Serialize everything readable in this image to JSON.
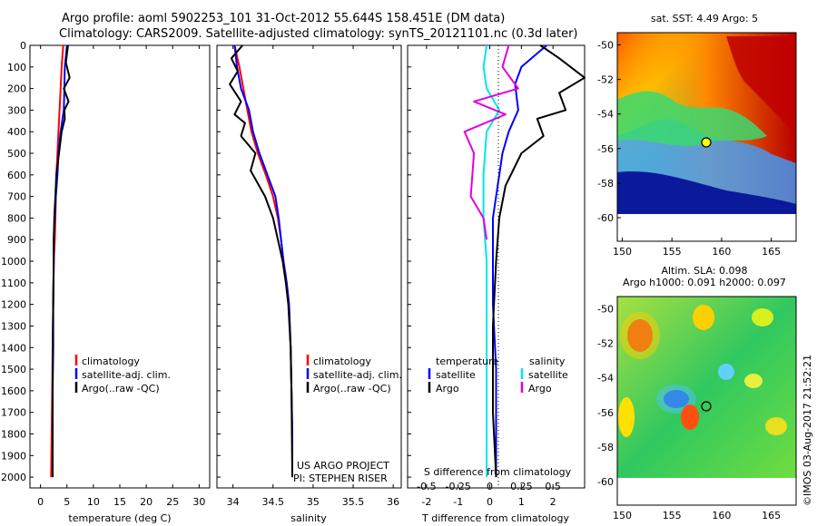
{
  "header": {
    "line1": "Argo profile: aoml 5902253_101 31-Oct-2012 55.644S 158.451E (DM data)",
    "line2": "Climatology: CARS2009. Satellite-adjusted climatology: synTS_20121101.nc (0.3d later)"
  },
  "colors": {
    "climatology": "#ff0000",
    "satellite": "#0000ff",
    "argo": "#000000",
    "sat_salinity": "#00e5ee",
    "argo_salinity": "#e000e0"
  },
  "chart_data": [
    {
      "type": "line",
      "id": "temperature",
      "xlabel": "temperature (deg C)",
      "ylabel": "",
      "xlim": [
        -2,
        32
      ],
      "ylim": [
        2050,
        0
      ],
      "xticks": [
        0,
        5,
        10,
        15,
        20,
        25,
        30
      ],
      "yticks": [
        0,
        100,
        200,
        300,
        400,
        500,
        600,
        700,
        800,
        900,
        1000,
        1100,
        1200,
        1300,
        1400,
        1500,
        1600,
        1700,
        1800,
        1900,
        2000
      ],
      "legend": [
        "climatology",
        "satellite-adj. clim.",
        "Argo(..raw -QC)"
      ],
      "legend_position": "bottom-center",
      "series": [
        {
          "name": "climatology",
          "color": "#ff0000",
          "x": [
            4.3,
            4.0,
            3.8,
            3.6,
            3.4,
            3.2,
            3.0,
            2.9,
            2.8,
            2.7,
            2.5,
            2.4,
            2.3,
            2.2,
            2.1,
            2.0
          ],
          "y": [
            0,
            100,
            200,
            300,
            400,
            500,
            600,
            700,
            800,
            900,
            1000,
            1200,
            1400,
            1600,
            1800,
            2000
          ]
        },
        {
          "name": "satellite-adj. clim.",
          "color": "#0000ff",
          "x": [
            5.0,
            4.6,
            4.5,
            4.4,
            3.8,
            3.4,
            3.2,
            2.9,
            2.7,
            2.5,
            2.5,
            2.4,
            2.3,
            2.3,
            2.3,
            2.3
          ],
          "y": [
            0,
            100,
            200,
            300,
            400,
            500,
            600,
            700,
            800,
            900,
            1000,
            1200,
            1400,
            1600,
            1800,
            2000
          ]
        },
        {
          "name": "Argo(..raw -QC)",
          "color": "#000000",
          "x": [
            5.2,
            4.8,
            5.5,
            4.4,
            5.3,
            4.5,
            4.6,
            4.0,
            3.5,
            3.0,
            2.8,
            2.6,
            2.5,
            2.5,
            2.4,
            2.4,
            2.3,
            2.3,
            2.3
          ],
          "y": [
            0,
            80,
            150,
            200,
            260,
            300,
            340,
            400,
            500,
            600,
            700,
            800,
            900,
            1000,
            1200,
            1400,
            1600,
            1800,
            2000
          ]
        }
      ]
    },
    {
      "type": "line",
      "id": "salinity",
      "xlabel": "salinity",
      "ylabel": "",
      "xlim": [
        33.8,
        36.1
      ],
      "ylim": [
        2050,
        0
      ],
      "xticks": [
        34,
        34.5,
        35,
        35.5,
        36
      ],
      "xtick_labels": [
        "34",
        "34.5",
        "35",
        "35.5",
        "36"
      ],
      "legend": [
        "climatology",
        "satellite-adj. clim.",
        "Argo(..raw -QC)"
      ],
      "legend_position": "bottom-right",
      "annotation": [
        "US ARGO PROJECT",
        "PI: STEPHEN RISER"
      ],
      "series": [
        {
          "name": "climatology",
          "color": "#ff0000",
          "x": [
            34.02,
            34.08,
            34.13,
            34.18,
            34.23,
            34.31,
            34.41,
            34.5,
            34.56,
            34.6,
            34.63,
            34.67,
            34.7,
            34.72,
            34.73,
            34.74,
            34.74
          ],
          "y": [
            0,
            100,
            200,
            300,
            400,
            500,
            600,
            700,
            800,
            900,
            1000,
            1100,
            1200,
            1400,
            1600,
            1800,
            2000
          ]
        },
        {
          "name": "satellite-adj. clim.",
          "color": "#0000ff",
          "x": [
            34.02,
            34.05,
            34.1,
            34.2,
            34.25,
            34.33,
            34.43,
            34.53,
            34.57,
            34.6,
            34.63,
            34.67,
            34.7,
            34.72,
            34.73,
            34.74,
            34.74
          ],
          "y": [
            0,
            100,
            200,
            300,
            400,
            500,
            600,
            700,
            800,
            900,
            1000,
            1100,
            1200,
            1400,
            1600,
            1800,
            2000
          ]
        },
        {
          "name": "Argo(..raw -QC)",
          "color": "#000000",
          "x": [
            34.12,
            33.98,
            34.06,
            33.96,
            34.1,
            34.02,
            34.15,
            34.1,
            34.28,
            34.22,
            34.4,
            34.5,
            34.56,
            34.62,
            34.66,
            34.69,
            34.72,
            34.73,
            34.74
          ],
          "y": [
            0,
            60,
            120,
            180,
            260,
            320,
            360,
            420,
            500,
            580,
            700,
            800,
            900,
            1000,
            1100,
            1200,
            1400,
            1600,
            2000
          ]
        }
      ]
    },
    {
      "type": "line",
      "id": "difference",
      "xlabel": "T difference from climatology",
      "xlabel2": "S difference from climatology",
      "xlim": [
        -2.6,
        3.0
      ],
      "xticks": [
        -2,
        -1,
        0,
        1,
        2
      ],
      "xticks2": [
        -0.5,
        -0.25,
        0,
        0.25,
        0.5
      ],
      "xtick2_labels": [
        "-0.5",
        "-0.25",
        "0",
        "0.25",
        "0.5"
      ],
      "ylim": [
        2050,
        0
      ],
      "legend_groups": [
        {
          "title": "temperature",
          "items": [
            "satellite",
            "Argo"
          ]
        },
        {
          "title": "salinity",
          "items": [
            "satellite",
            "Argo"
          ]
        }
      ],
      "series": [
        {
          "name": "temperature satellite",
          "color": "#0000ff",
          "x": [
            1.8,
            1.0,
            0.8,
            0.9,
            0.6,
            0.4,
            0.3,
            0.2,
            0.1,
            0.1,
            0.1,
            0.2,
            0.2,
            0.2
          ],
          "y": [
            0,
            100,
            180,
            300,
            400,
            500,
            600,
            700,
            800,
            1000,
            1200,
            1500,
            1800,
            2000
          ]
        },
        {
          "name": "temperature Argo",
          "color": "#000000",
          "x": [
            1.6,
            2.2,
            3.0,
            2.2,
            2.4,
            1.5,
            1.7,
            1.0,
            0.5,
            0.3,
            0.2,
            0.1,
            0.1,
            0.2
          ],
          "y": [
            0,
            60,
            150,
            220,
            300,
            340,
            420,
            500,
            650,
            800,
            1000,
            1300,
            1700,
            2000
          ]
        },
        {
          "name": "salinity satellite",
          "color": "#00e5ee",
          "x": [
            -0.1,
            -0.2,
            -0.1,
            0.3,
            -0.1,
            -0.2,
            -0.2,
            -0.1,
            -0.1,
            -0.1,
            -0.1
          ],
          "y": [
            0,
            100,
            200,
            300,
            400,
            600,
            800,
            1000,
            1300,
            1600,
            2000
          ]
        },
        {
          "name": "salinity Argo",
          "color": "#e000e0",
          "x": [
            0.6,
            0.4,
            0.9,
            -0.5,
            0.5,
            -0.8,
            -0.5,
            -0.6,
            -0.2,
            -0.1
          ],
          "y": [
            0,
            100,
            200,
            260,
            320,
            400,
            500,
            700,
            800,
            900
          ]
        }
      ]
    },
    {
      "type": "heatmap",
      "id": "sst-map",
      "title": "sat. SST: 4.49 Argo: 5",
      "xlim": [
        149.5,
        167.5
      ],
      "ylim": [
        -60,
        -49.5
      ],
      "xticks": [
        150,
        155,
        160,
        165
      ],
      "yticks": [
        -50,
        -52,
        -54,
        -56,
        -58,
        -60
      ],
      "argo_position": [
        158.451,
        -55.644
      ]
    },
    {
      "type": "heatmap",
      "id": "sla-map",
      "title": "Altim. SLA: 0.098",
      "subtitle": "Argo h1000: 0.091 h2000: 0.097",
      "xlim": [
        149.5,
        167.5
      ],
      "ylim": [
        -60,
        -49.5
      ],
      "xticks": [
        150,
        155,
        160,
        165
      ],
      "yticks": [
        -50,
        -52,
        -54,
        -56,
        -58,
        -60
      ],
      "argo_position": [
        158.451,
        -55.644
      ]
    }
  ],
  "stamp": "©IMOS 03-Aug-2017 21:52:21"
}
